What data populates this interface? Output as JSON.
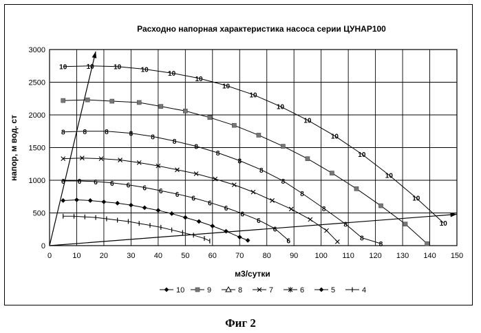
{
  "figure": {
    "caption": "Фиг 2"
  },
  "chart_data": {
    "type": "line",
    "title": "Расходно напорная характеристика насоса серии ЦУНАР100",
    "xlabel": "м3/сутки",
    "ylabel": "напор, м вод. ст",
    "xlim": [
      0,
      150
    ],
    "ylim": [
      0,
      3000
    ],
    "xticks": [
      0,
      10,
      20,
      30,
      40,
      50,
      60,
      70,
      80,
      90,
      100,
      110,
      120,
      130,
      140,
      150
    ],
    "yticks": [
      0,
      500,
      1000,
      1500,
      2000,
      2500,
      3000
    ],
    "grid": true,
    "legend_position": "bottom",
    "series": [
      {
        "name": "10",
        "marker": "diamond",
        "x": [
          5,
          15,
          25,
          35,
          45,
          55,
          65,
          75,
          85,
          95,
          105,
          115,
          125,
          135,
          145
        ],
        "y": [
          2740,
          2750,
          2740,
          2700,
          2640,
          2560,
          2450,
          2310,
          2130,
          1920,
          1680,
          1400,
          1080,
          730,
          350
        ],
        "point_labels": true,
        "point_label": "10"
      },
      {
        "name": "9",
        "marker": "square",
        "x": [
          5,
          14,
          23,
          33,
          41,
          50,
          59,
          68,
          77,
          86,
          95,
          104,
          113,
          122,
          131,
          139
        ],
        "y": [
          2220,
          2230,
          2210,
          2190,
          2130,
          2060,
          1960,
          1840,
          1690,
          1520,
          1330,
          1110,
          870,
          610,
          330,
          30
        ]
      },
      {
        "name": "8",
        "marker": "triangle",
        "x": [
          5,
          13,
          21,
          30,
          38,
          46,
          54,
          62,
          70,
          78,
          86,
          93,
          101,
          109,
          115,
          122
        ],
        "y": [
          1740,
          1750,
          1750,
          1720,
          1670,
          1600,
          1520,
          1420,
          1300,
          1160,
          990,
          800,
          570,
          330,
          120,
          30
        ],
        "point_labels": true,
        "point_label": "8"
      },
      {
        "name": "7",
        "marker": "x",
        "x": [
          5,
          12,
          19,
          26,
          33,
          40,
          47,
          54,
          61,
          68,
          75,
          82,
          89,
          96,
          102,
          106
        ],
        "y": [
          1330,
          1340,
          1330,
          1310,
          1270,
          1220,
          1160,
          1100,
          1020,
          930,
          820,
          690,
          560,
          400,
          230,
          60
        ]
      },
      {
        "name": "6",
        "marker": "asterisk",
        "x": [
          5,
          11,
          17,
          23,
          29,
          35,
          41,
          47,
          53,
          59,
          65,
          71,
          77,
          83,
          88
        ],
        "y": [
          990,
          990,
          980,
          960,
          930,
          890,
          840,
          790,
          730,
          660,
          580,
          490,
          390,
          260,
          80
        ],
        "point_labels": true,
        "point_label": "6"
      },
      {
        "name": "5",
        "marker": "diamond",
        "x": [
          5,
          10,
          15,
          20,
          25,
          30,
          35,
          40,
          45,
          50,
          55,
          60,
          65,
          70,
          73
        ],
        "y": [
          690,
          700,
          690,
          670,
          650,
          620,
          580,
          540,
          490,
          430,
          370,
          300,
          220,
          130,
          80
        ]
      },
      {
        "name": "4",
        "marker": "plus",
        "x": [
          5,
          9,
          13,
          17,
          21,
          25,
          29,
          33,
          37,
          41,
          45,
          49,
          53,
          57,
          59
        ],
        "y": [
          450,
          450,
          440,
          430,
          410,
          390,
          370,
          340,
          310,
          280,
          240,
          200,
          160,
          110,
          70
        ]
      }
    ],
    "annotations": {
      "arrows": [
        {
          "from": [
            0,
            0
          ],
          "to": [
            17,
            2970
          ]
        },
        {
          "from": [
            0,
            0
          ],
          "to": [
            150,
            480
          ]
        }
      ]
    }
  }
}
